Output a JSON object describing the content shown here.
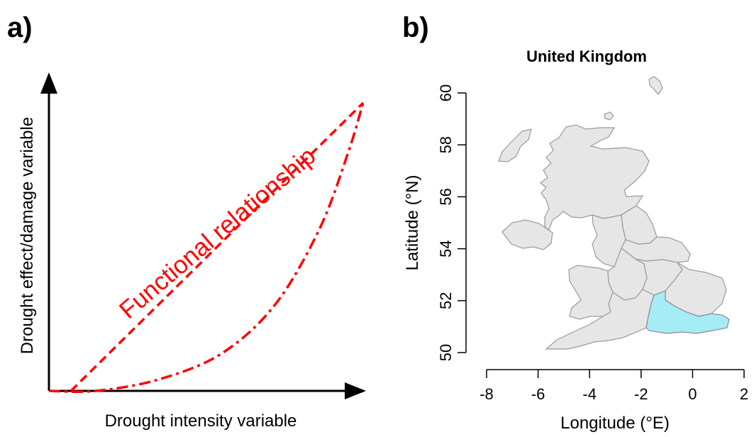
{
  "panels": {
    "a": {
      "label": "a)"
    },
    "b": {
      "label": "b)"
    }
  },
  "colors": {
    "curve": "#ff0000",
    "land": "#e6e6e6",
    "highlight": "#a6ecf7"
  },
  "chart_data": [
    {
      "type": "line",
      "title": "",
      "xlabel": "Drought intensity variable",
      "ylabel": "Drought effect/damage variable",
      "annotation": "Functional relationship",
      "axis_ticks": "none",
      "series": [
        {
          "style": "dashed",
          "x": [
            0.07,
            1.0
          ],
          "y": [
            0.0,
            1.0
          ]
        },
        {
          "style": "dash-dot",
          "x": [
            0.0,
            0.15,
            0.35,
            0.55,
            0.72,
            0.86,
            0.95,
            1.0
          ],
          "y": [
            0.0,
            0.0,
            0.04,
            0.13,
            0.3,
            0.56,
            0.82,
            1.0
          ]
        }
      ]
    },
    {
      "type": "map",
      "title": "United Kingdom",
      "xlabel": "Longitude (°E)",
      "ylabel": "Latitude (°N)",
      "xlim": [
        -8,
        2
      ],
      "ylim": [
        50,
        60
      ],
      "xticks": [
        "-8",
        "-6",
        "-4",
        "-2",
        "0",
        "2"
      ],
      "yticks": [
        "50",
        "52",
        "54",
        "56",
        "58",
        "60"
      ],
      "highlighted_region": "South East England"
    }
  ]
}
